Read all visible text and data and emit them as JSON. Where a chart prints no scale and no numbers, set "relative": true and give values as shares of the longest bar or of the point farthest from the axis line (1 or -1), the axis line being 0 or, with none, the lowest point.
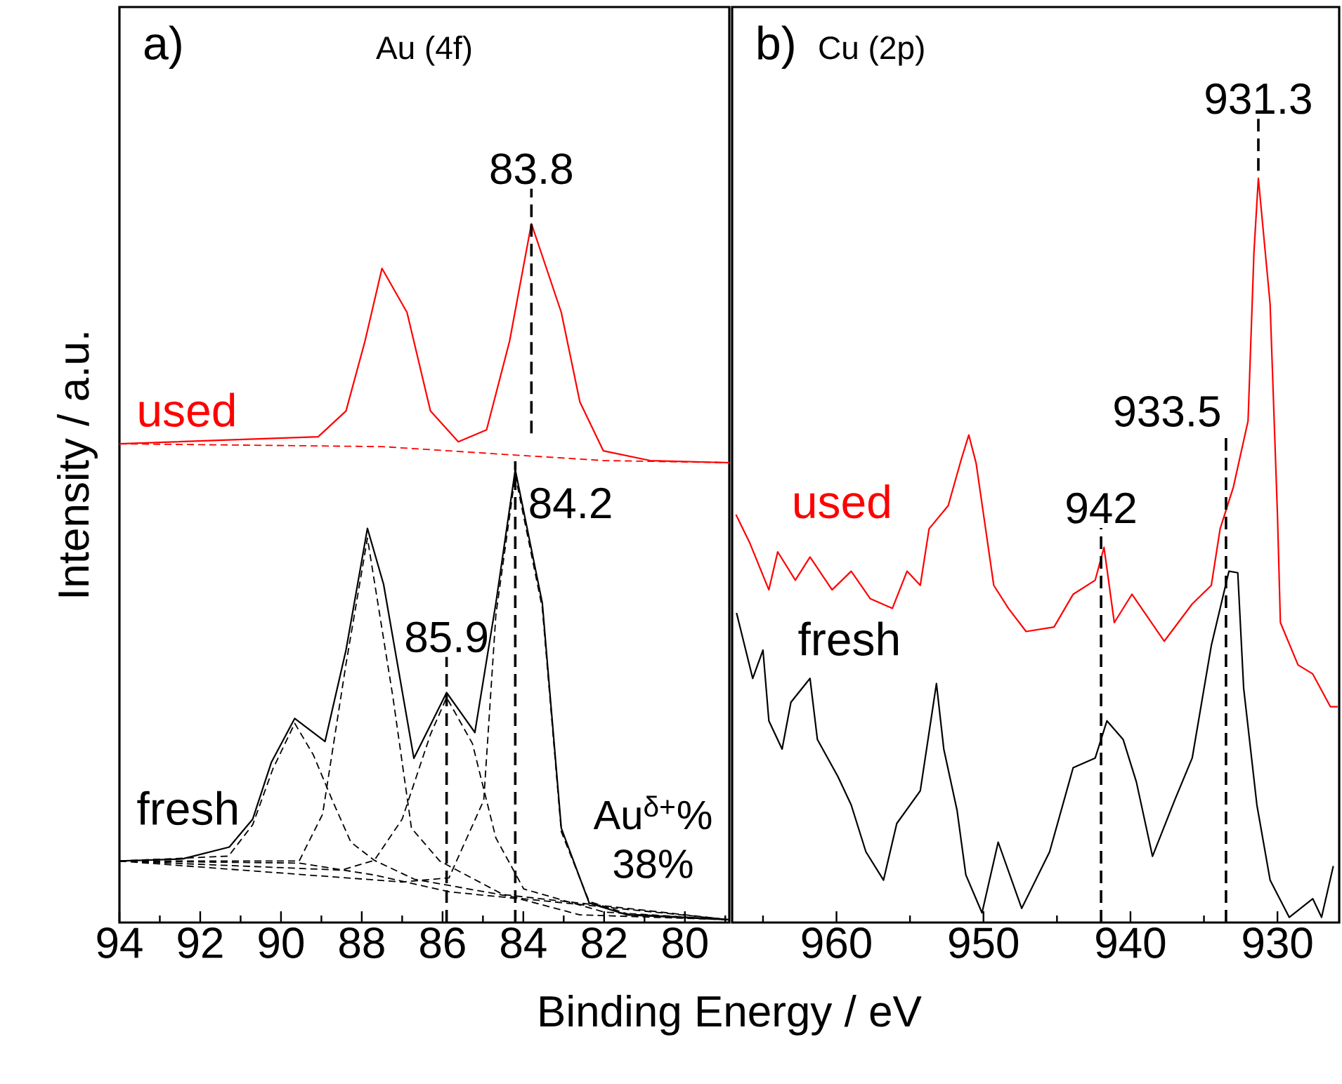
{
  "chart_data": [
    {
      "type": "line",
      "title": "Au (4f)",
      "xlabel": "Binding Energy / eV",
      "ylabel": "Intensity / a.u.",
      "annotations": [
        "a)",
        "Au$^{δ+}$%",
        "38%"
      ],
      "relative": true,
      "tick_labels": "x",
      "marker": "none",
      "xlim": [
        94,
        78.9
      ],
      "xticks": [
        94,
        {
          "value": 93,
          "label": null
        },
        92,
        {
          "value": 91,
          "label": null
        },
        90,
        {
          "value": 89,
          "label": null
        },
        88,
        {
          "value": 87,
          "label": null
        },
        86,
        {
          "value": 85,
          "label": null
        },
        84,
        {
          "value": 83,
          "label": null
        },
        82,
        {
          "value": 81,
          "label": null
        },
        80,
        {
          "value": 79,
          "label": null
        }
      ],
      "ref_lines": [
        {
          "axis": "x",
          "value": 83.8,
          "label": "83.8",
          "color": "#000000",
          "line_style": "dashed"
        },
        {
          "axis": "x",
          "value": 85.9,
          "label": "85.9",
          "color": "#000000",
          "line_style": "dashed"
        },
        {
          "axis": "x",
          "value": 84.2,
          "label": "84.2",
          "color": "#000000",
          "line_style": "dashed"
        }
      ],
      "series": [
        {
          "name": "used",
          "color": "#ff0000",
          "x": [
            94,
            89.08,
            88.39,
            87.92,
            87.5,
            86.88,
            86.3,
            85.61,
            84.91,
            84.34,
            83.8,
            83.06,
            82.6,
            82.02,
            80.86,
            78.9
          ],
          "values": [
            0.685,
            0.695,
            0.732,
            0.832,
            0.936,
            0.873,
            0.732,
            0.688,
            0.705,
            0.832,
            1.0,
            0.873,
            0.745,
            0.675,
            0.661,
            0.658
          ]
        },
        {
          "color": "#ff0000",
          "line_style": "dashed",
          "x": [
            94,
            87.5,
            84.5,
            82,
            78.9
          ],
          "values": [
            0.685,
            0.681,
            0.67,
            0.661,
            0.658
          ]
        },
        {
          "name": "fresh",
          "color": "#000000",
          "x": [
            94,
            92.44,
            91.28,
            90.7,
            90.24,
            89.66,
            88.91,
            88.39,
            87.86,
            87.46,
            86.71,
            85.9,
            85.2,
            84.68,
            84.2,
            83.53,
            83.06,
            82.37,
            81.44,
            78.9
          ],
          "values": [
            0.088,
            0.091,
            0.108,
            0.148,
            0.229,
            0.292,
            0.259,
            0.39,
            0.564,
            0.484,
            0.235,
            0.329,
            0.272,
            0.457,
            0.648,
            0.457,
            0.135,
            0.028,
            0.011,
            0.004
          ]
        },
        {
          "color": "#000000",
          "line_style": "dashed",
          "x": [
            94,
            89.55,
            87.69,
            85.84,
            84.1,
            82.6,
            78.9
          ],
          "values": [
            0.088,
            0.085,
            0.068,
            0.044,
            0.034,
            0.011,
            0.004
          ]
        },
        {
          "color": "#000000",
          "line_style": "dashed",
          "x": [
            94,
            91.3,
            90.7,
            90.2,
            89.66,
            89.2,
            88.73,
            88.27,
            87.69,
            86.7,
            84,
            78.9
          ],
          "values": [
            0.088,
            0.095,
            0.14,
            0.22,
            0.285,
            0.24,
            0.175,
            0.115,
            0.089,
            0.062,
            0.034,
            0.004
          ]
        },
        {
          "color": "#000000",
          "line_style": "dashed",
          "x": [
            94,
            89.55,
            88.97,
            88.39,
            87.86,
            87.23,
            86.77,
            86.07,
            84.5,
            78.9
          ],
          "values": [
            0.088,
            0.088,
            0.155,
            0.37,
            0.55,
            0.323,
            0.135,
            0.088,
            0.04,
            0.004
          ]
        },
        {
          "color": "#000000",
          "line_style": "dashed",
          "x": [
            94,
            88.5,
            87.69,
            87.0,
            86.3,
            85.9,
            85.26,
            84.68,
            83.99,
            82,
            78.9
          ],
          "values": [
            0.088,
            0.075,
            0.089,
            0.148,
            0.269,
            0.322,
            0.256,
            0.121,
            0.048,
            0.015,
            0.004
          ]
        },
        {
          "color": "#000000",
          "line_style": "dashed",
          "x": [
            94,
            87,
            85.84,
            84.98,
            84.68,
            84.2,
            83.53,
            83.06,
            82.37,
            81.4,
            78.9
          ],
          "values": [
            0.088,
            0.058,
            0.064,
            0.175,
            0.44,
            0.64,
            0.45,
            0.13,
            0.03,
            0.012,
            0.004
          ]
        }
      ]
    },
    {
      "type": "line",
      "title": "Cu (2p)",
      "annotations": [
        "b)"
      ],
      "relative": true,
      "tick_labels": "x",
      "marker": "none",
      "xlim": [
        967.1,
        925.8
      ],
      "xticks": [
        {
          "value": 965,
          "label": null
        },
        960,
        {
          "value": 955,
          "label": null
        },
        950,
        {
          "value": 945,
          "label": null
        },
        940,
        {
          "value": 935,
          "label": null
        },
        930
      ],
      "ref_lines": [
        {
          "axis": "x",
          "value": 931.3,
          "label": "931.3",
          "color": "#000000",
          "line_style": "dashed"
        },
        {
          "axis": "x",
          "value": 942,
          "label": "942",
          "color": "#000000",
          "line_style": "dashed"
        },
        {
          "axis": "x",
          "value": 933.5,
          "label": "933.5",
          "color": "#000000",
          "line_style": "dashed"
        }
      ],
      "series": [
        {
          "name": "used",
          "color": "#ff0000",
          "x": [
            966.84,
            965.9,
            964.6,
            964.0,
            962.8,
            961.8,
            960.3,
            959.0,
            957.7,
            956.2,
            955.2,
            954.3,
            953.7,
            952.4,
            951.5,
            951.0,
            950.5,
            949.9,
            949.3,
            948.3,
            947.1,
            945.2,
            943.9,
            942.4,
            941.8,
            941.1,
            939.9,
            937.7,
            935.8,
            934.5,
            933.9,
            933.0,
            932.0,
            931.6,
            931.3,
            930.5,
            930.0,
            929.8,
            928.6,
            927.6,
            926.4,
            925.9
          ],
          "values": [
            0.548,
            0.51,
            0.447,
            0.498,
            0.46,
            0.491,
            0.447,
            0.472,
            0.435,
            0.422,
            0.472,
            0.453,
            0.529,
            0.56,
            0.623,
            0.655,
            0.617,
            0.535,
            0.453,
            0.422,
            0.391,
            0.397,
            0.441,
            0.46,
            0.504,
            0.403,
            0.441,
            0.378,
            0.428,
            0.453,
            0.529,
            0.585,
            0.674,
            0.9,
            1.0,
            0.831,
            0.548,
            0.403,
            0.346,
            0.334,
            0.29,
            0.29
          ]
        },
        {
          "name": "fresh",
          "color": "#000000",
          "x": [
            966.8,
            965.7,
            965.0,
            964.6,
            963.7,
            963.1,
            961.8,
            961.3,
            959.9,
            959.0,
            958.0,
            956.8,
            955.9,
            954.3,
            953.2,
            952.7,
            951.8,
            951.2,
            950.1,
            949.0,
            947.4,
            945.5,
            943.9,
            942.4,
            941.6,
            940.5,
            939.6,
            938.5,
            937.0,
            935.8,
            934.5,
            933.3,
            932.7,
            932.3,
            931.4,
            930.5,
            929.2,
            927.6,
            927.0,
            926.2
          ],
          "values": [
            0.416,
            0.328,
            0.366,
            0.271,
            0.233,
            0.296,
            0.328,
            0.246,
            0.196,
            0.158,
            0.095,
            0.057,
            0.133,
            0.177,
            0.321,
            0.233,
            0.151,
            0.064,
            0.013,
            0.108,
            0.019,
            0.095,
            0.208,
            0.221,
            0.271,
            0.246,
            0.189,
            0.089,
            0.164,
            0.221,
            0.372,
            0.472,
            0.47,
            0.315,
            0.158,
            0.057,
            0.007,
            0.032,
            0.007,
            0.076
          ]
        }
      ]
    }
  ]
}
